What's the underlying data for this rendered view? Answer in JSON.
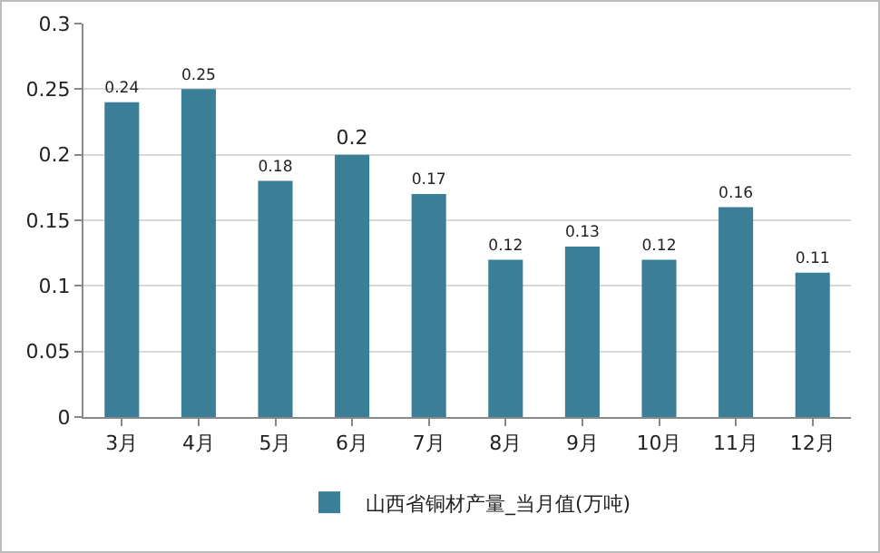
{
  "chart_data": {
    "type": "bar",
    "categories": [
      "3月",
      "4月",
      "5月",
      "6月",
      "7月",
      "8月",
      "9月",
      "10月",
      "11月",
      "12月"
    ],
    "series": [
      {
        "name": "山西省铜材产量_当月值(万吨)",
        "color": "#3a7f97",
        "values": [
          0.24,
          0.25,
          0.18,
          0.2,
          0.17,
          0.12,
          0.13,
          0.12,
          0.16,
          0.11
        ]
      }
    ],
    "ylim": [
      0,
      0.3
    ],
    "yticks": [
      0,
      0.05,
      0.1,
      0.15,
      0.2,
      0.25,
      0.3
    ],
    "grid": "y",
    "legend": "bottom",
    "data_labels": true
  }
}
